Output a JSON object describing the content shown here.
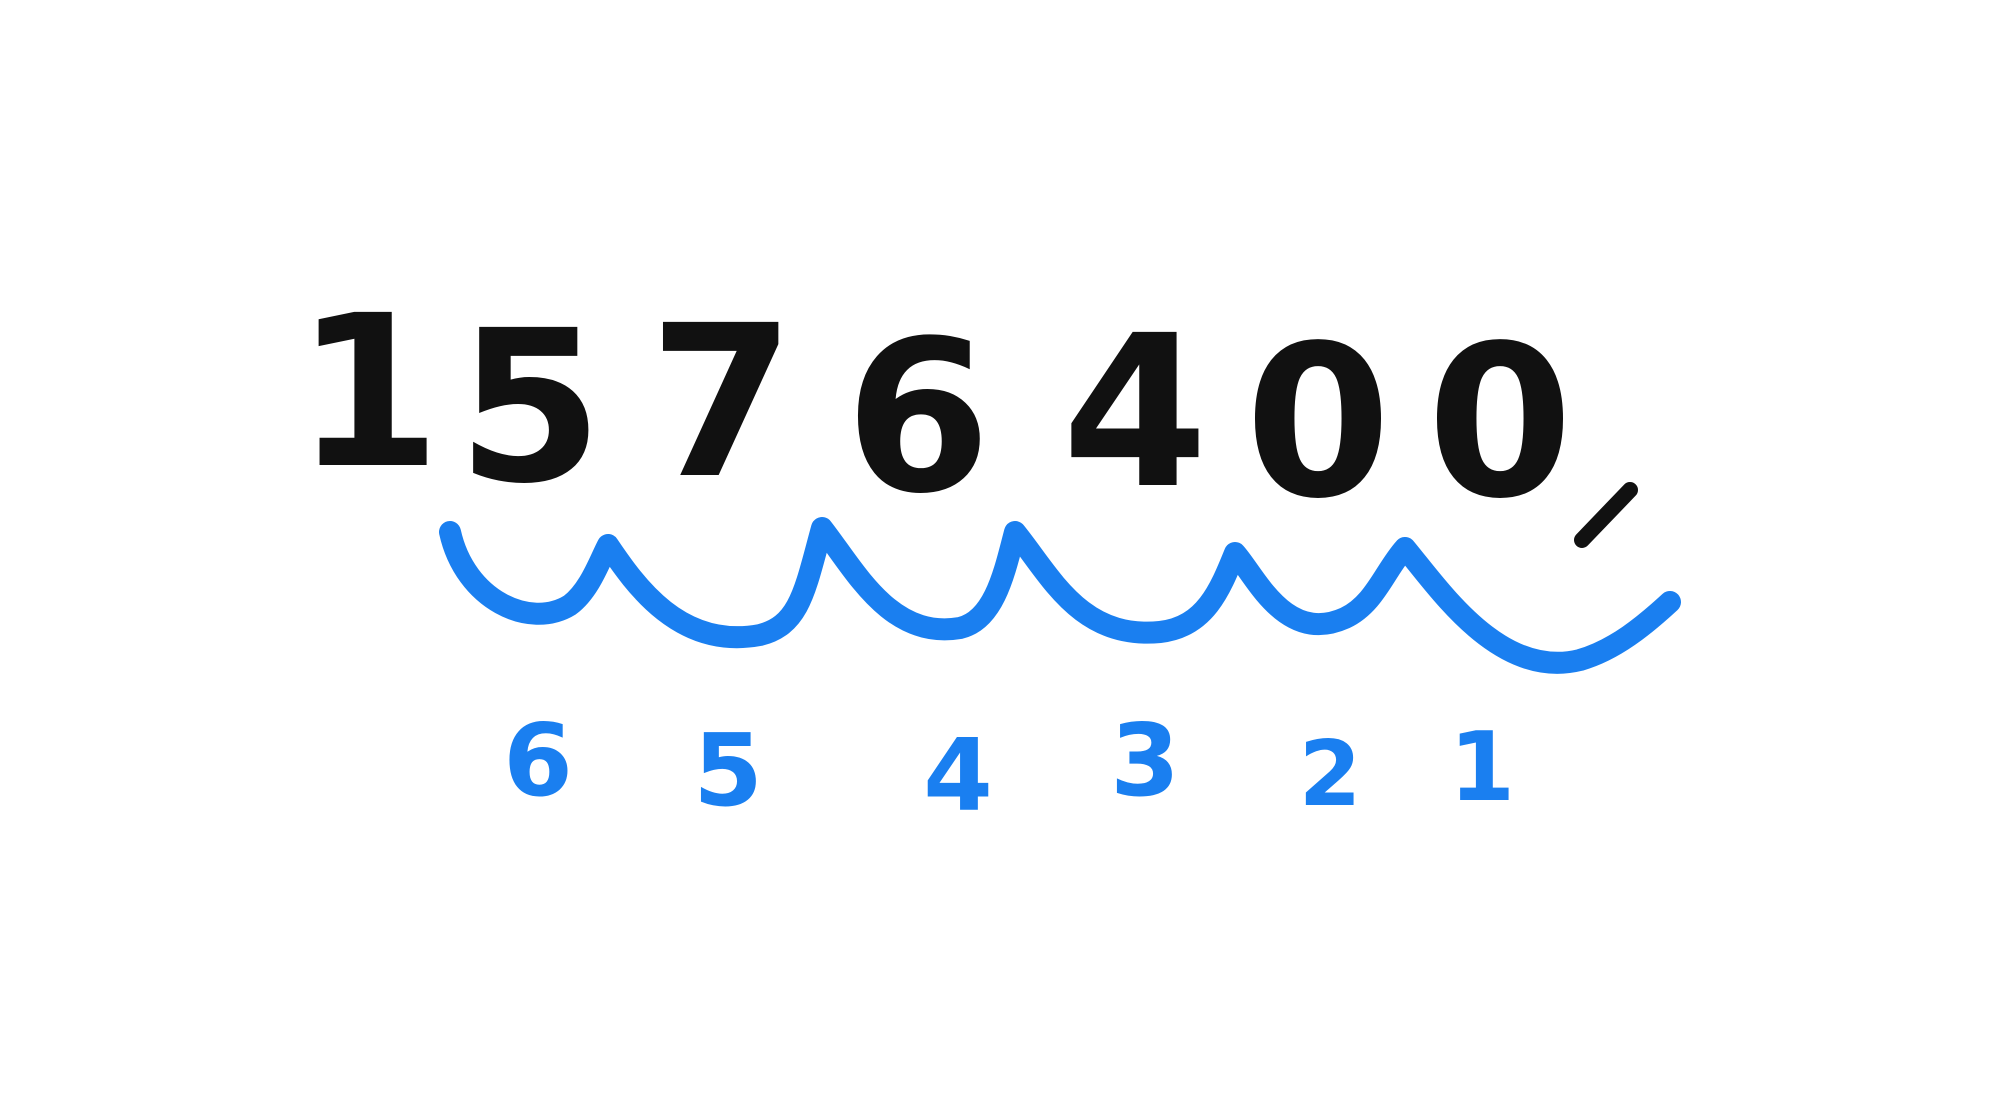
{
  "number": {
    "digits": [
      "1",
      "5",
      "7",
      "6",
      "4",
      "0",
      "0"
    ],
    "separator": ","
  },
  "place_labels": [
    "6",
    "5",
    "4",
    "3",
    "2",
    "1"
  ],
  "colors": {
    "ink": "#111111",
    "accent": "#1a7ff0",
    "background": "#ffffff"
  }
}
